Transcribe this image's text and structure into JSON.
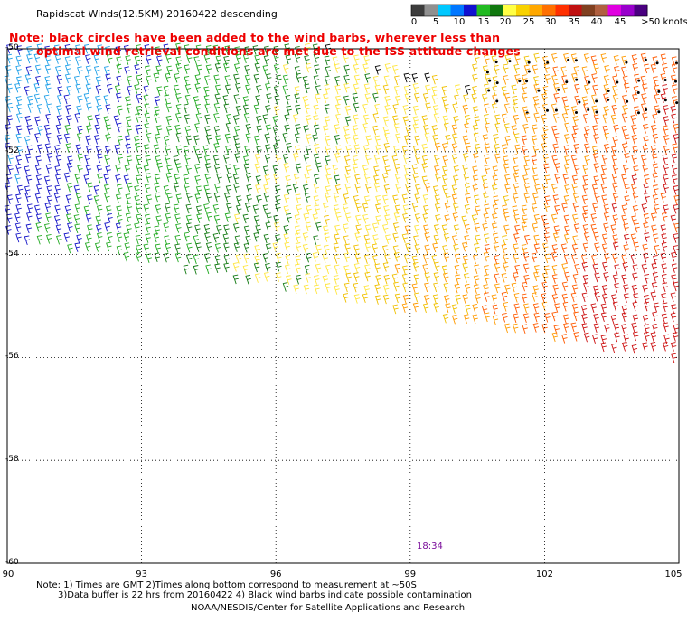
{
  "title": "Rapidscat Winds(12.5KM) 20160422 descending",
  "note_line1": "Note: black circles have been added to the wind barbs, wherever less than",
  "note_line2": "optimal wind retrieval conditions are met due to the ISS attitude changes",
  "colorbar": {
    "units": "knots",
    "labels": [
      "0",
      "5",
      "10",
      "15",
      "20",
      "25",
      "30",
      "35",
      "40",
      "45",
      ">50 knots"
    ],
    "colors": [
      "#3c3c3c",
      "#909090",
      "#00c8ff",
      "#0077ff",
      "#1010d0",
      "#22bb22",
      "#10780f",
      "#ffff44",
      "#f8d200",
      "#ffa800",
      "#ff7000",
      "#ff3000",
      "#c01010",
      "#804020",
      "#b06040",
      "#e000e0",
      "#9900cc",
      "#4a0080"
    ]
  },
  "map": {
    "lon_ticks": [
      "90",
      "93",
      "96",
      "99",
      "102",
      "105"
    ],
    "lat_ticks": [
      "-50",
      "-52",
      "-54",
      "-56",
      "-58",
      "-60"
    ],
    "lon_range": [
      90,
      105
    ],
    "lat_range": [
      -60,
      -50
    ],
    "grid": "dotted"
  },
  "time_label": "18:34",
  "footnote_line1": "Note: 1) Times are GMT 2)Times along bottom correspond to measurement at ~50S",
  "footnote_line2": "3)Data buffer is 22 hrs from 20160422 4) Black wind barbs indicate possible contamination",
  "credit": "NOAA/NESDIS/Center for Satellite Applications and Research"
}
